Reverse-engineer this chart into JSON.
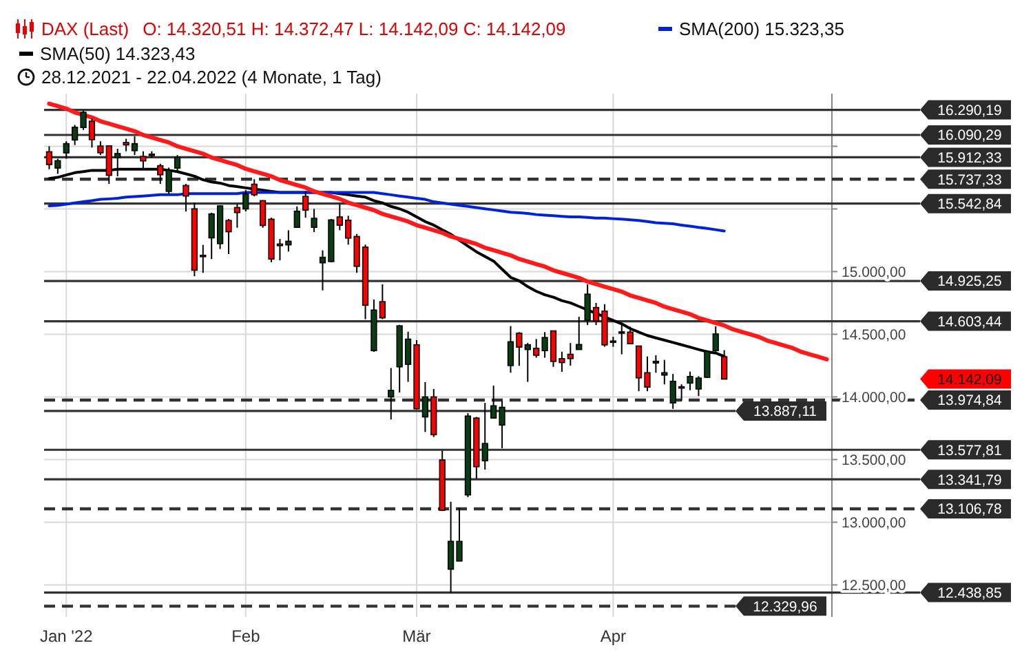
{
  "chart_data": {
    "type": "candlestick",
    "title": "DAX (Last)",
    "subtitle": "O: 14.320,51  H: 14.372,47  L: 14.142,09  C: 14.142,09",
    "categories": [
      null,
      null,
      "Jan '22",
      null,
      null,
      null,
      null,
      null,
      null,
      null,
      null,
      null,
      null,
      null,
      null,
      null,
      null,
      null,
      null,
      null,
      null,
      null,
      null,
      "Feb",
      null,
      null,
      null,
      null,
      null,
      null,
      null,
      null,
      null,
      null,
      null,
      null,
      null,
      null,
      null,
      null,
      null,
      null,
      null,
      "Mär",
      null,
      null,
      null,
      null,
      null,
      null,
      null,
      null,
      null,
      null,
      null,
      null,
      null,
      null,
      null,
      null,
      null,
      null,
      null,
      null,
      null,
      null,
      "Apr",
      null,
      null,
      null,
      null,
      null,
      null,
      null,
      null,
      null,
      null,
      null,
      null,
      null,
      null,
      null,
      null,
      null,
      null,
      null,
      null,
      null,
      null,
      null,
      null,
      null
    ],
    "ohlc": [
      [
        15956,
        16000,
        15817,
        15854
      ],
      [
        15826,
        15900,
        15780,
        15885
      ],
      [
        15947,
        16040,
        15900,
        16021
      ],
      [
        16050,
        16170,
        16010,
        16152
      ],
      [
        16150,
        16285,
        16130,
        16271
      ],
      [
        16200,
        16220,
        15990,
        16053
      ],
      [
        16002,
        16040,
        15930,
        15948
      ],
      [
        16003,
        16005,
        15700,
        15768
      ],
      [
        15910,
        15980,
        15760,
        15942
      ],
      [
        16030,
        16060,
        15960,
        16011
      ],
      [
        15965,
        16080,
        15930,
        16021
      ],
      [
        15919,
        15960,
        15820,
        15883
      ],
      [
        15937,
        15960,
        15910,
        15934
      ],
      [
        15845,
        15860,
        15700,
        15773
      ],
      [
        15640,
        15830,
        15620,
        15810
      ],
      [
        15826,
        15930,
        15800,
        15912
      ],
      [
        15687,
        15700,
        15480,
        15603
      ],
      [
        15501,
        15550,
        14963,
        15011
      ],
      [
        15130,
        15213,
        14990,
        15123
      ],
      [
        15269,
        15470,
        15100,
        15460
      ],
      [
        15223,
        15530,
        15180,
        15524
      ],
      [
        15408,
        15420,
        15140,
        15318
      ],
      [
        15511,
        15540,
        15350,
        15471
      ],
      [
        15500,
        15650,
        15480,
        15619
      ],
      [
        15697,
        15737,
        15600,
        15613
      ],
      [
        15566,
        15570,
        15350,
        15368
      ],
      [
        15418,
        15430,
        15075,
        15100
      ],
      [
        15220,
        15260,
        15090,
        15207
      ],
      [
        15213,
        15330,
        15160,
        15242
      ],
      [
        15353,
        15520,
        15353,
        15482
      ],
      [
        15600,
        15640,
        15430,
        15490
      ],
      [
        15353,
        15500,
        15316,
        15425
      ],
      [
        15070,
        15170,
        14850,
        15114
      ],
      [
        15080,
        15420,
        15075,
        15412
      ],
      [
        15436,
        15540,
        15330,
        15370
      ],
      [
        15410,
        15445,
        15215,
        15267
      ],
      [
        15280,
        15300,
        14990,
        15042
      ],
      [
        15195,
        15215,
        14620,
        14731
      ],
      [
        14369,
        14777,
        14360,
        14693
      ],
      [
        14760,
        14898,
        14620,
        14631
      ],
      [
        14000,
        14230,
        13820,
        14052
      ],
      [
        14240,
        14575,
        14035,
        14567
      ],
      [
        14260,
        14520,
        14120,
        14461
      ],
      [
        14416,
        14453,
        13900,
        13905
      ],
      [
        13840,
        14118,
        13720,
        14000
      ],
      [
        14000,
        14063,
        13680,
        13698
      ],
      [
        13497,
        13571,
        13090,
        13094
      ],
      [
        12625,
        13163,
        12439,
        12847
      ],
      [
        12690,
        13116,
        12690,
        12847
      ],
      [
        13218,
        13870,
        13200,
        13847
      ],
      [
        13831,
        13840,
        13348,
        13443
      ],
      [
        13490,
        13952,
        13420,
        13628
      ],
      [
        13831,
        14090,
        13831,
        13929
      ],
      [
        13775,
        13970,
        13590,
        13917
      ],
      [
        14250,
        14565,
        14193,
        14440
      ],
      [
        14508,
        14517,
        14248,
        14397
      ],
      [
        14378,
        14430,
        14120,
        14416
      ],
      [
        14388,
        14462,
        14313,
        14332
      ],
      [
        14369,
        14517,
        14313,
        14474
      ],
      [
        14527,
        14530,
        14240,
        14283
      ],
      [
        14305,
        14360,
        14200,
        14274
      ],
      [
        14340,
        14430,
        14250,
        14306
      ],
      [
        14378,
        14640,
        14378,
        14418
      ],
      [
        14611,
        14898,
        14573,
        14820
      ],
      [
        14713,
        14750,
        14573,
        14606
      ],
      [
        14685,
        14740,
        14400,
        14415
      ],
      [
        14440,
        14480,
        14400,
        14446
      ],
      [
        14508,
        14573,
        14340,
        14519
      ],
      [
        14517,
        14560,
        14420,
        14424
      ],
      [
        14406,
        14406,
        14045,
        14152
      ],
      [
        14193,
        14323,
        14045,
        14078
      ],
      [
        14270,
        14332,
        14193,
        14284
      ],
      [
        14174,
        14295,
        14100,
        14193
      ],
      [
        13952,
        14183,
        13905,
        14124
      ],
      [
        14081,
        14100,
        13970,
        14076
      ],
      [
        14110,
        14202,
        14053,
        14163
      ],
      [
        14063,
        14165,
        14007,
        14150
      ],
      [
        14156,
        14372,
        14150,
        14362
      ],
      [
        14369,
        14564,
        14360,
        14502
      ],
      [
        14320.51,
        14372.47,
        14142.09,
        14142.09
      ],
      null,
      null,
      null,
      null,
      null,
      null,
      null,
      null,
      null,
      null,
      null,
      null
    ],
    "series": [
      {
        "name": "SMA(50)  14.323,43",
        "type": "line",
        "color": "#000000",
        "values": [
          15743,
          15752,
          15771,
          15789,
          15798,
          15808,
          15808,
          15808,
          15817,
          15817,
          15817,
          15817,
          15817,
          15817,
          15808,
          15798,
          15780,
          15761,
          15733,
          15715,
          15706,
          15687,
          15678,
          15668,
          15659,
          15650,
          15640,
          15631,
          15631,
          15631,
          15631,
          15631,
          15631,
          15631,
          15622,
          15613,
          15603,
          15594,
          15566,
          15548,
          15520,
          15501,
          15474,
          15436,
          15399,
          15371,
          15334,
          15297,
          15251,
          15204,
          15158,
          15121,
          15084,
          15019,
          14954,
          14926,
          14880,
          14843,
          14815,
          14796,
          14768,
          14750,
          14722,
          14694,
          14666,
          14638,
          14610,
          14583,
          14545,
          14517,
          14490,
          14471,
          14453,
          14434,
          14416,
          14397,
          14378,
          14360,
          14350,
          14323.43,
          null,
          null,
          null,
          null,
          null,
          null,
          null,
          null,
          null,
          null,
          null,
          null
        ]
      },
      {
        "name": "SMA(200)  15.323,35",
        "type": "line",
        "color": "#0022dd",
        "values": [
          15525,
          15529,
          15538,
          15548,
          15557,
          15566,
          15576,
          15580,
          15585,
          15594,
          15599,
          15603,
          15608,
          15613,
          15613,
          15613,
          15622,
          15622,
          15622,
          15622,
          15622,
          15622,
          15622,
          15631,
          15631,
          15631,
          15631,
          15631,
          15631,
          15631,
          15631,
          15631,
          15631,
          15631,
          15631,
          15631,
          15631,
          15631,
          15631,
          15622,
          15613,
          15603,
          15594,
          15585,
          15576,
          15557,
          15548,
          15538,
          15529,
          15520,
          15511,
          15501,
          15492,
          15483,
          15474,
          15469,
          15464,
          15455,
          15450,
          15446,
          15441,
          15436,
          15436,
          15432,
          15427,
          15427,
          15422,
          15418,
          15413,
          15408,
          15399,
          15390,
          15385,
          15381,
          15371,
          15362,
          15353,
          15344,
          15334,
          15323.35,
          null,
          null,
          null,
          null,
          null,
          null,
          null,
          null,
          null,
          null,
          null,
          null
        ]
      },
      {
        "type": "line",
        "color": "#ff1a1a",
        "values": [
          16340,
          16320,
          16300,
          16270,
          16250,
          16230,
          16200,
          16180,
          16160,
          16140,
          16120,
          16090,
          16070,
          16050,
          16030,
          16000,
          15980,
          15960,
          15940,
          15910,
          15890,
          15870,
          15850,
          15820,
          15800,
          15780,
          15760,
          15730,
          15710,
          15690,
          15670,
          15640,
          15620,
          15600,
          15580,
          15550,
          15530,
          15510,
          15490,
          15460,
          15440,
          15420,
          15400,
          15370,
          15350,
          15330,
          15310,
          15280,
          15260,
          15240,
          15220,
          15190,
          15170,
          15150,
          15130,
          15100,
          15080,
          15060,
          15040,
          15010,
          14990,
          14970,
          14950,
          14920,
          14900,
          14880,
          14860,
          14840,
          14810,
          14790,
          14770,
          14750,
          14720,
          14700,
          14680,
          14660,
          14630,
          14610,
          14590,
          14570,
          14540,
          14520,
          14500,
          14480,
          14450,
          14430,
          14410,
          14390,
          14360,
          14340,
          14320,
          14300
        ]
      }
    ],
    "ylim": [
      12244,
      16420
    ],
    "yticks": [
      {
        "value": 12500,
        "label": "12.500,00"
      },
      {
        "value": 13000,
        "label": "13.000,00"
      },
      {
        "value": 13500,
        "label": "13.500,00"
      },
      {
        "value": 14000,
        "label": "14.000,00"
      },
      {
        "value": 14500,
        "label": "14.500,00"
      },
      {
        "value": 15000,
        "label": "15.000,00"
      },
      {
        "value": 15500,
        "label": null
      },
      {
        "value": 16000,
        "label": null
      }
    ],
    "grid": true,
    "legend": "top left",
    "marker": "none",
    "ref_lines": [
      {
        "axis": "y",
        "value": 16290.19,
        "label": "16.290,19",
        "color": "#333333",
        "line_style": "solid"
      },
      {
        "axis": "y",
        "value": 16090.29,
        "label": "16.090,29",
        "color": "#333333",
        "line_style": "solid"
      },
      {
        "axis": "y",
        "value": 15912.33,
        "label": "15.912,33",
        "color": "#333333",
        "line_style": "solid"
      },
      {
        "axis": "y",
        "value": 15737.33,
        "label": "15.737,33",
        "color": "#333333",
        "line_style": "dashed"
      },
      {
        "axis": "y",
        "value": 15542.84,
        "label": "15.542,84",
        "color": "#333333",
        "line_style": "solid"
      },
      {
        "axis": "y",
        "value": 14925.25,
        "label": "14.925,25",
        "color": "#333333",
        "line_style": "solid"
      },
      {
        "axis": "y",
        "value": 14603.44,
        "label": "14.603,44",
        "color": "#333333",
        "line_style": "solid"
      },
      {
        "axis": "y",
        "value": 13974.84,
        "label": "13.974,84",
        "color": "#333333",
        "line_style": "dashed"
      },
      {
        "axis": "y",
        "value": 13887.11,
        "label": "13.887,11",
        "color": "#333333",
        "line_style": "solid"
      },
      {
        "axis": "y",
        "value": 13577.81,
        "label": "13.577,81",
        "color": "#333333",
        "line_style": "solid"
      },
      {
        "axis": "y",
        "value": 13341.79,
        "label": "13.341,79",
        "color": "#333333",
        "line_style": "solid"
      },
      {
        "axis": "y",
        "value": 13106.78,
        "label": "13.106,78",
        "color": "#333333",
        "line_style": "dashed"
      },
      {
        "axis": "y",
        "value": 12438.85,
        "label": "12.438,85",
        "color": "#333333",
        "line_style": "solid"
      },
      {
        "axis": "y",
        "value": 12329.96,
        "label": "12.329,96",
        "color": "#333333",
        "line_style": "dashed"
      }
    ],
    "annotations": [
      "28.12.2021 - 22.04.2022  (4 Monate, 1 Tag)",
      "14.142,09"
    ]
  }
}
